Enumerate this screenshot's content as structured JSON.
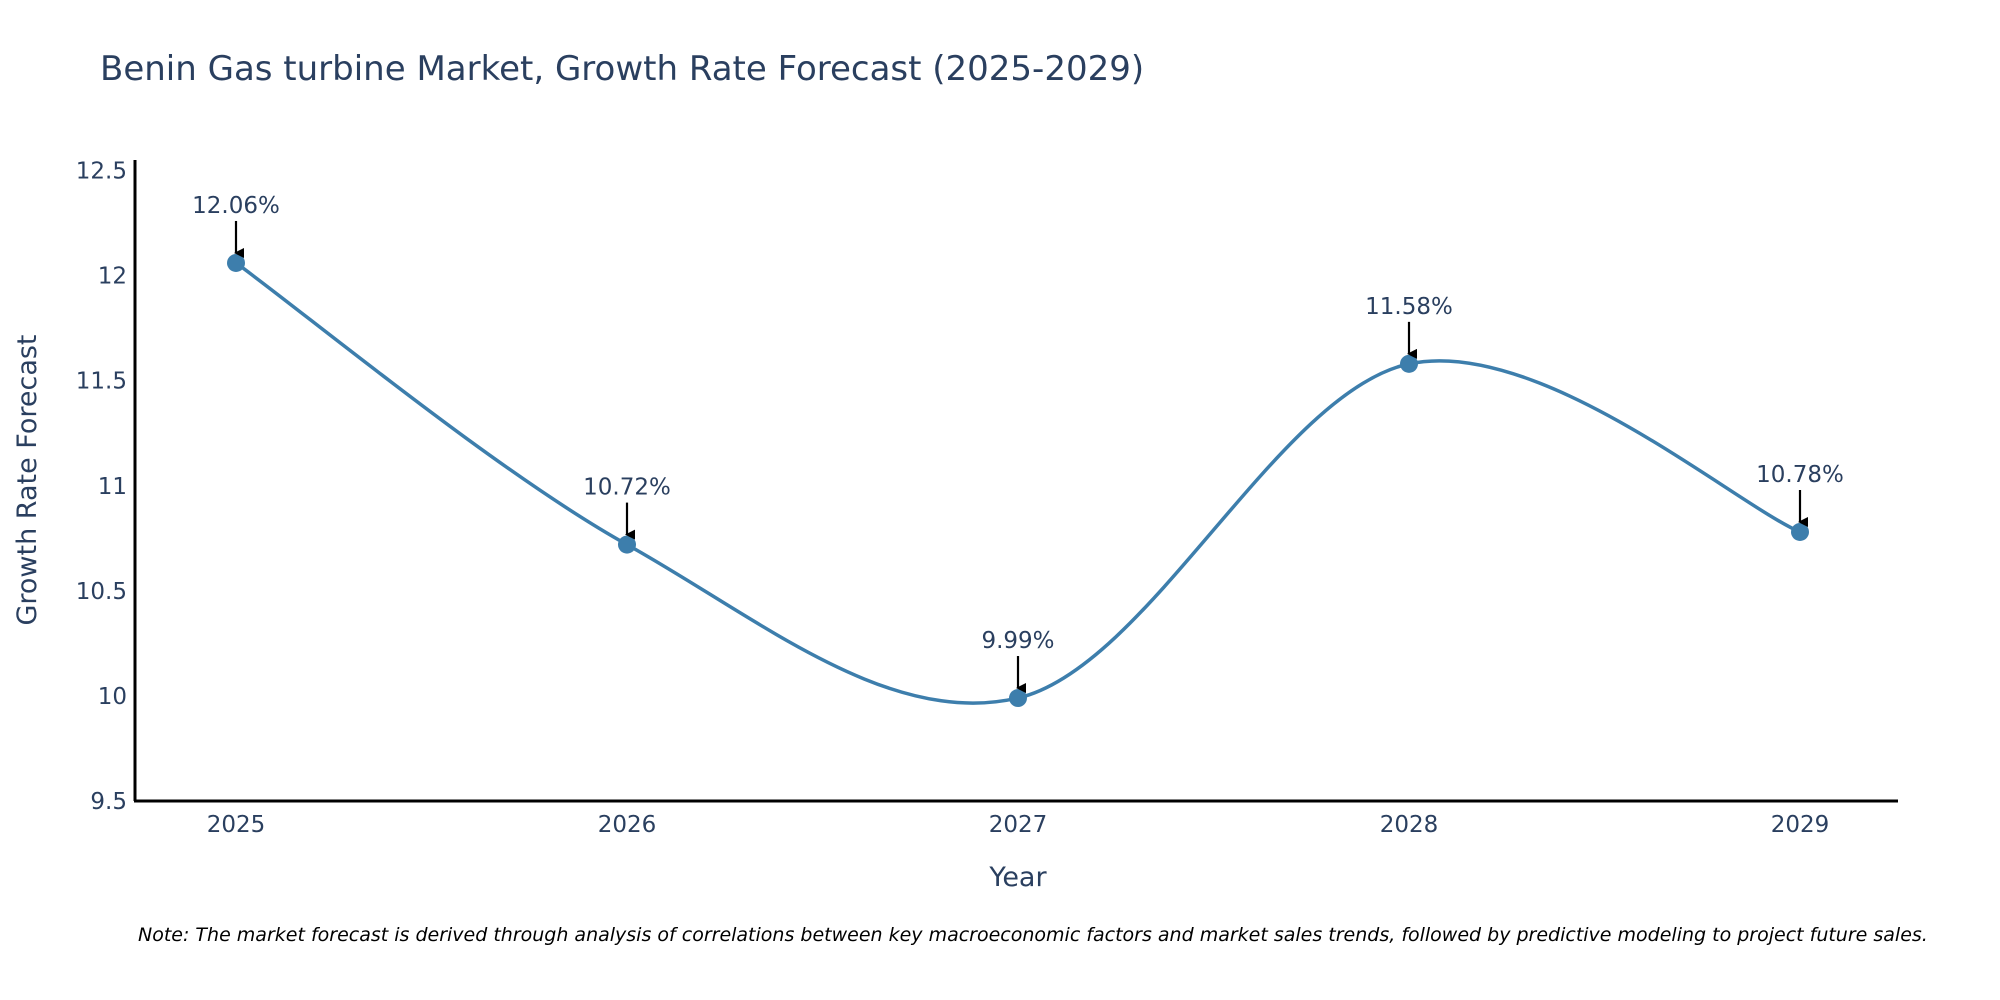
{
  "chart_data": {
    "type": "line",
    "title": "Benin Gas turbine Market, Growth Rate Forecast (2025-2029)",
    "xlabel": "Year",
    "ylabel": "Growth Rate Forecast",
    "categories": [
      "2025",
      "2026",
      "2027",
      "2028",
      "2029"
    ],
    "values": [
      12.06,
      10.72,
      9.99,
      11.58,
      10.78
    ],
    "data_labels": [
      "12.06%",
      "10.72%",
      "9.99%",
      "11.58%",
      "10.78%"
    ],
    "yticks": [
      "9.5",
      "10",
      "10.5",
      "11",
      "11.5",
      "12",
      "12.5"
    ],
    "ytick_values": [
      9.5,
      10,
      10.5,
      11,
      11.5,
      12,
      12.5
    ],
    "ylim": [
      9.5,
      12.55
    ],
    "grid": false,
    "line_shape": "spline",
    "series_color": "#3d7eac",
    "annotation_color": "#000000",
    "note": "Note: The market forecast is derived through analysis of correlations between key macroeconomic factors and market sales trends, followed by predictive modeling to project future sales."
  }
}
